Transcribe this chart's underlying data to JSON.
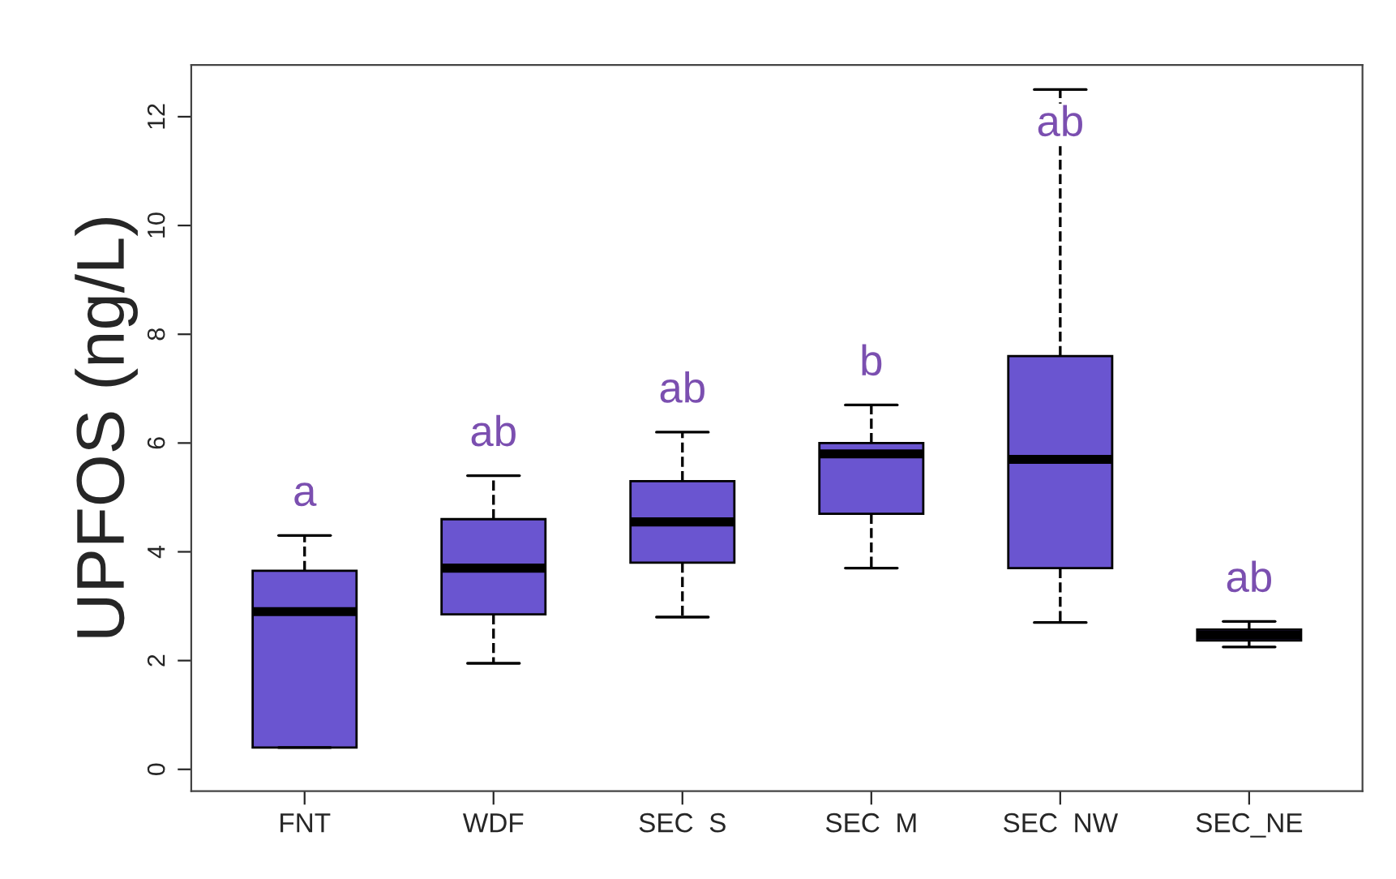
{
  "chart_data": {
    "type": "box",
    "ylabel": "UPFOS (ng/L)",
    "categories": [
      "FNT",
      "WDF",
      "SEC  S",
      "SEC  M",
      "SEC  NW",
      "SEC_NE"
    ],
    "series": [
      {
        "color": "#6a55d0",
        "boxes": [
          {
            "low": 0.4,
            "q1": 0.4,
            "median": 2.9,
            "q3": 3.65,
            "high": 4.3
          },
          {
            "low": 1.95,
            "q1": 2.85,
            "median": 3.7,
            "q3": 4.6,
            "high": 5.4
          },
          {
            "low": 2.8,
            "q1": 3.8,
            "median": 4.55,
            "q3": 5.3,
            "high": 6.2
          },
          {
            "low": 3.7,
            "q1": 4.7,
            "median": 5.8,
            "q3": 6.0,
            "high": 6.7
          },
          {
            "low": 2.7,
            "q1": 3.7,
            "median": 5.7,
            "q3": 7.6,
            "high": 12.5
          },
          {
            "low": 2.25,
            "q1": 2.37,
            "median": 2.47,
            "q3": 2.57,
            "high": 2.72
          }
        ]
      }
    ],
    "ylim": [
      -0.4,
      12.95
    ],
    "yticks": [
      0,
      2,
      4,
      6,
      8,
      10,
      12
    ],
    "grid": false,
    "line_style": "dashed",
    "annotations": [
      "a",
      "ab",
      "ab",
      "b",
      "ab",
      "ab"
    ]
  }
}
